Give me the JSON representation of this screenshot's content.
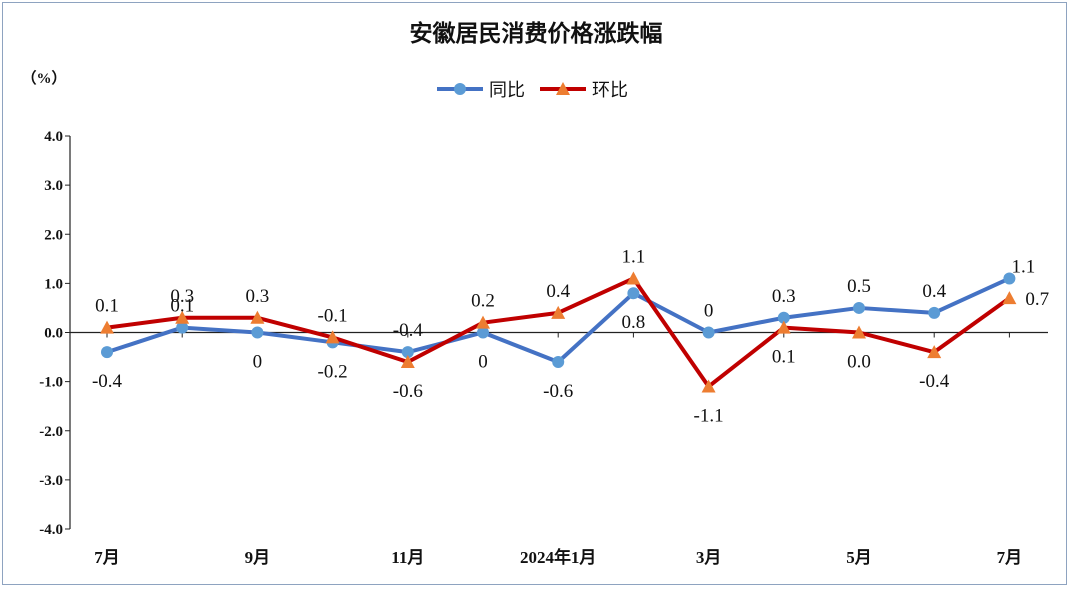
{
  "chart_data": {
    "type": "line",
    "title": "安徽居民消费价格涨跌幅",
    "ylabel": "（%）",
    "xlabel": "",
    "ylim": [
      -4.0,
      4.0
    ],
    "yticks": [
      "4.0",
      "3.0",
      "2.0",
      "1.0",
      "0.0",
      "-1.0",
      "-2.0",
      "-3.0",
      "-4.0"
    ],
    "ytick_values": [
      4,
      3,
      2,
      1,
      0,
      -1,
      -2,
      -3,
      -4
    ],
    "grid": false,
    "legend_position": "top-center",
    "categories": [
      "2023-07",
      "2023-08",
      "2023-09",
      "2023-10",
      "2023-11",
      "2023-12",
      "2024-01",
      "2024-02",
      "2024-03",
      "2024-04",
      "2024-05",
      "2024-06",
      "2024-07"
    ],
    "xtick_labels": [
      "7月",
      "",
      "9月",
      "",
      "11月",
      "",
      "2024年1月",
      "",
      "3月",
      "",
      "5月",
      "",
      "7月"
    ],
    "series": [
      {
        "name": "同比",
        "color": "#4472c4",
        "marker_color": "#5b9bd5",
        "marker": "circle",
        "values": [
          -0.4,
          0.1,
          0,
          -0.2,
          -0.4,
          0,
          -0.6,
          0.8,
          0,
          0.3,
          0.5,
          0.4,
          1.1
        ],
        "labels": [
          "-0.4",
          "0.1",
          "0",
          "-0.2",
          "-0.4",
          "0",
          "-0.6",
          "0.8",
          "0",
          "0.3",
          "0.5",
          "0.4",
          "1.1"
        ]
      },
      {
        "name": "环比",
        "color": "#c00000",
        "marker_color": "#ed7d31",
        "marker": "triangle",
        "values": [
          0.1,
          0.3,
          0.3,
          -0.1,
          -0.6,
          0.2,
          0.4,
          1.1,
          -1.1,
          0.1,
          0.0,
          -0.4,
          0.7
        ],
        "labels": [
          "0.1",
          "0.3",
          "0.3",
          "-0.1",
          "-0.6",
          "0.2",
          "0.4",
          "1.1",
          "-1.1",
          "0.1",
          "0.0",
          "-0.4",
          "0.7"
        ]
      }
    ]
  }
}
